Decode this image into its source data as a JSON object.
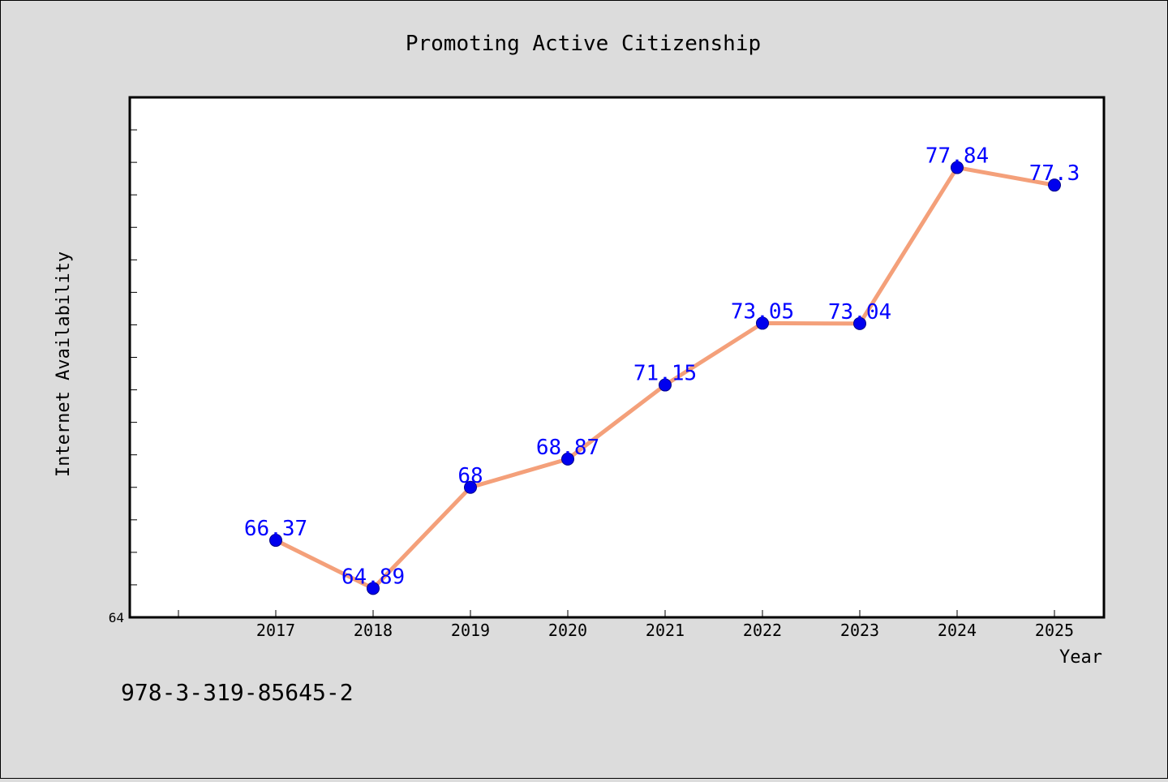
{
  "chart_data": {
    "type": "line",
    "title": "Promoting Active Citizenship",
    "xlabel": "Year",
    "ylabel": "Internet Availability",
    "x": [
      "2017",
      "2018",
      "2019",
      "2020",
      "2021",
      "2022",
      "2023",
      "2024",
      "2025"
    ],
    "series": [
      {
        "values": [
          66.37,
          64.89,
          68,
          68.87,
          71.15,
          73.05,
          73.04,
          77.84,
          77.3
        ],
        "labels": [
          "66.37",
          "64.89",
          "68",
          "68.87",
          "71.15",
          "73.05",
          "73.04",
          "77.84",
          "77.3"
        ],
        "line_color": "#f4a07a",
        "marker_color": "#0000ee",
        "label_color": "#0000ff"
      }
    ],
    "ylim": [
      64,
      80
    ],
    "y_tick_labels": [
      "64"
    ],
    "grid": false,
    "legend": "none"
  },
  "footer": {
    "isbn": "978-3-319-85645-2"
  }
}
